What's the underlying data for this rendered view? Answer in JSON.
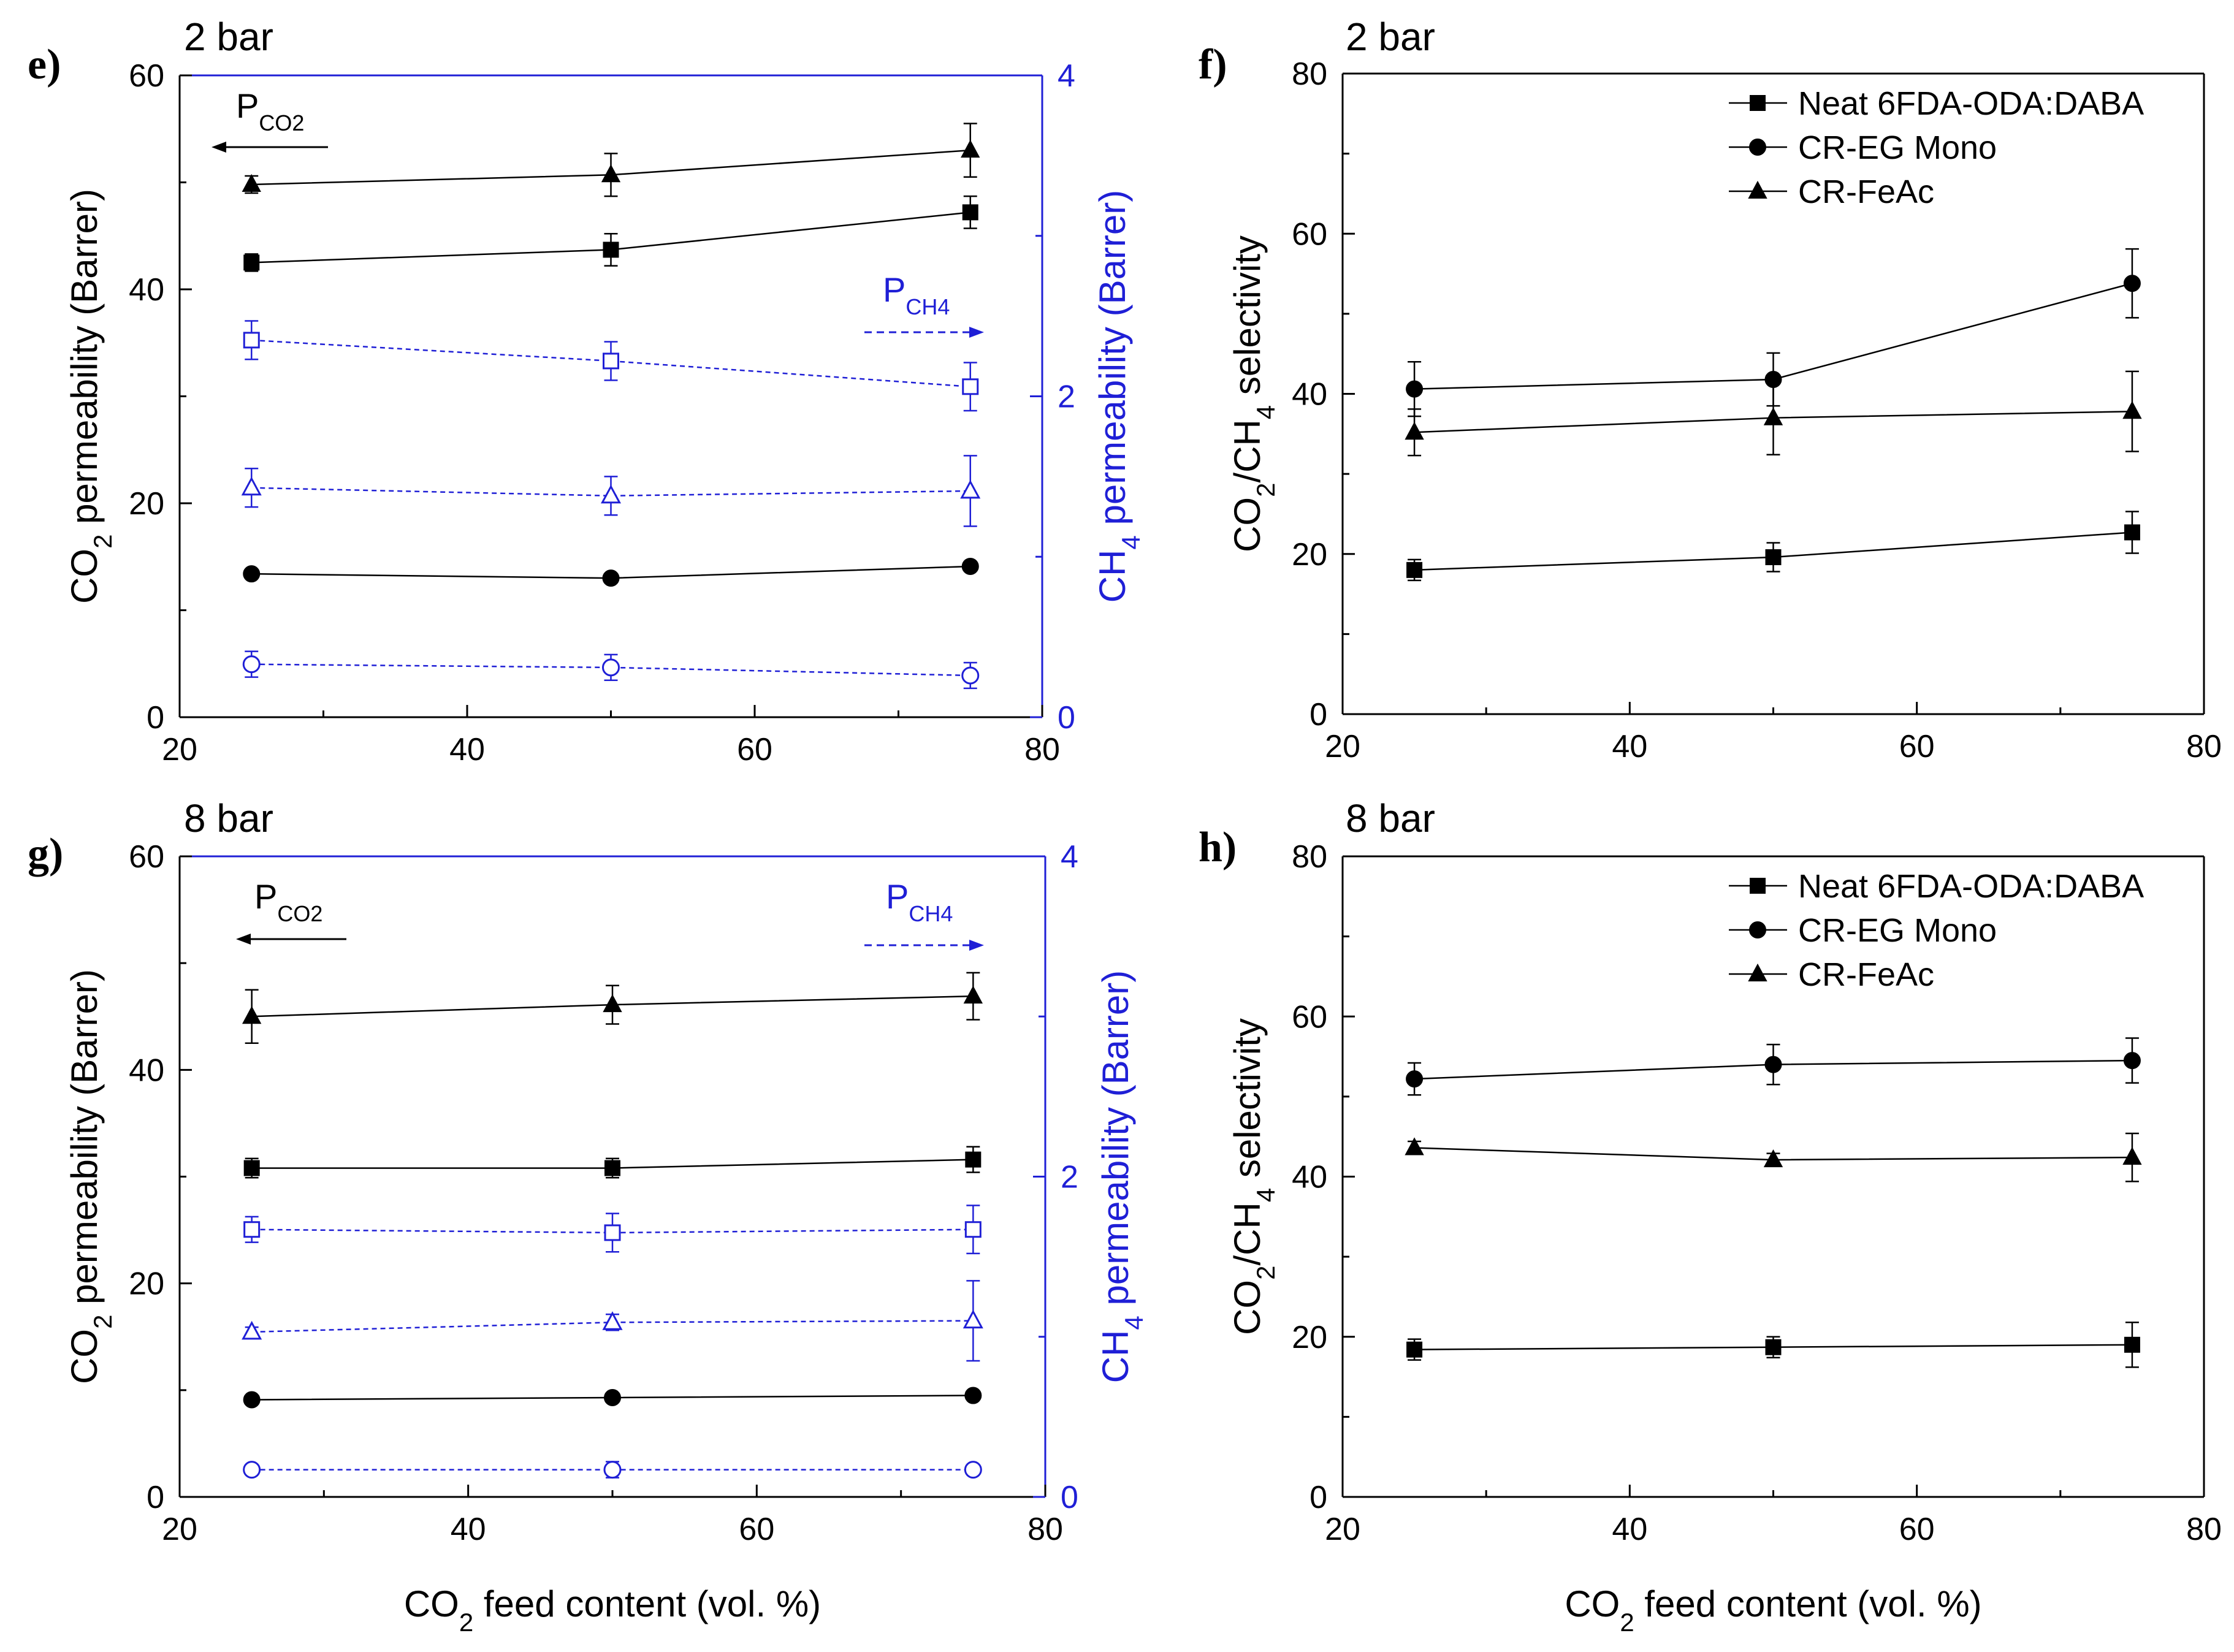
{
  "colors": {
    "primary": "#000000",
    "secondary": "#1f1fd6"
  },
  "panels": [
    {
      "id": "e",
      "letter": "e)",
      "pressure": "2 bar",
      "kind": "permeability",
      "xlabel_main": "",
      "xlabel_sub": "",
      "xlabel_rest": "",
      "ylabel_main": "CO",
      "ylabel_sub": "2",
      "ylabel_rest": " permeability (Barrer)",
      "y2label_main": "CH",
      "y2label_sub": "4",
      "y2label_rest": " permeability (Barrer)",
      "ann_left": {
        "main": "P",
        "sub": "CO2"
      },
      "ann_right": {
        "main": "P",
        "sub": "CH4"
      }
    },
    {
      "id": "f",
      "letter": "f)",
      "pressure": "2 bar",
      "kind": "selectivity",
      "xlabel_main": "",
      "xlabel_sub": "",
      "xlabel_rest": "",
      "ylabel_main": "CO",
      "ylabel_sub": "2",
      "ylabel_mid": "/CH",
      "ylabel_sub2": "4",
      "ylabel_rest": " selectivity"
    },
    {
      "id": "g",
      "letter": "g)",
      "pressure": "8 bar",
      "kind": "permeability",
      "xlabel_main": "CO",
      "xlabel_sub": "2",
      "xlabel_rest": " feed content (vol. %)",
      "ylabel_main": "CO",
      "ylabel_sub": "2",
      "ylabel_rest": " permeability (Barrer)",
      "y2label_main": "CH",
      "y2label_sub": "4",
      "y2label_rest": " permeability (Barrer)",
      "ann_left": {
        "main": "P",
        "sub": "CO2"
      },
      "ann_right": {
        "main": "P",
        "sub": "CH4"
      }
    },
    {
      "id": "h",
      "letter": "h)",
      "pressure": "8 bar",
      "kind": "selectivity",
      "xlabel_main": "CO",
      "xlabel_sub": "2",
      "xlabel_rest": " feed content (vol. %)",
      "ylabel_main": "CO",
      "ylabel_sub": "2",
      "ylabel_mid": "/CH",
      "ylabel_sub2": "4",
      "ylabel_rest": " selectivity"
    }
  ],
  "legend_entries": [
    "Neat 6FDA-ODA:DABA",
    "CR-EG Mono",
    "CR-FeAc"
  ],
  "chart_data": [
    {
      "panel": "e",
      "type": "line",
      "title": "2 bar",
      "x": [
        25,
        50,
        75
      ],
      "xlim": [
        20,
        80
      ],
      "xticks": [
        20,
        40,
        60,
        80
      ],
      "ylim": [
        0,
        60
      ],
      "yticks": [
        0,
        20,
        40,
        60
      ],
      "y2lim": [
        0,
        4
      ],
      "y2ticks": [
        0,
        2,
        4
      ],
      "series": [
        {
          "name": "Neat 6FDA-ODA:DABA CO2",
          "axis": "left",
          "marker": "square",
          "filled": true,
          "dashed": false,
          "color": "#000000",
          "values": [
            42.5,
            43.7,
            47.2
          ],
          "errors": [
            0.8,
            1.5,
            1.5
          ]
        },
        {
          "name": "CR-EG Mono CO2",
          "axis": "left",
          "marker": "circle",
          "filled": true,
          "dashed": false,
          "color": "#000000",
          "values": [
            13.4,
            13.0,
            14.1
          ],
          "errors": [
            0.3,
            0.3,
            0.3
          ]
        },
        {
          "name": "CR-FeAc CO2",
          "axis": "left",
          "marker": "triangle",
          "filled": true,
          "dashed": false,
          "color": "#000000",
          "values": [
            49.8,
            50.7,
            53.0
          ],
          "errors": [
            0.8,
            2.0,
            2.5
          ]
        },
        {
          "name": "Neat 6FDA-ODA:DABA CH4",
          "axis": "right",
          "marker": "square",
          "filled": false,
          "dashed": true,
          "color": "#1f1fd6",
          "values": [
            2.35,
            2.22,
            2.06
          ],
          "errors": [
            0.12,
            0.12,
            0.15
          ]
        },
        {
          "name": "CR-EG Mono CH4",
          "axis": "right",
          "marker": "circle",
          "filled": false,
          "dashed": true,
          "color": "#1f1fd6",
          "values": [
            0.33,
            0.31,
            0.26
          ],
          "errors": [
            0.08,
            0.08,
            0.08
          ]
        },
        {
          "name": "CR-FeAc CH4",
          "axis": "right",
          "marker": "triangle",
          "filled": false,
          "dashed": true,
          "color": "#1f1fd6",
          "values": [
            1.43,
            1.38,
            1.41
          ],
          "errors": [
            0.12,
            0.12,
            0.22
          ]
        }
      ]
    },
    {
      "panel": "f",
      "type": "line",
      "title": "2 bar",
      "x": [
        25,
        50,
        75
      ],
      "xlim": [
        20,
        80
      ],
      "xticks": [
        20,
        40,
        60,
        80
      ],
      "ylim": [
        0,
        80
      ],
      "yticks": [
        0,
        20,
        40,
        60,
        80
      ],
      "series": [
        {
          "name": "Neat 6FDA-ODA:DABA",
          "marker": "square",
          "filled": true,
          "color": "#000000",
          "values": [
            18.0,
            19.6,
            22.7
          ],
          "errors": [
            1.3,
            1.8,
            2.6
          ]
        },
        {
          "name": "CR-EG Mono",
          "marker": "circle",
          "filled": true,
          "color": "#000000",
          "values": [
            40.6,
            41.8,
            53.8
          ],
          "errors": [
            3.4,
            3.3,
            4.3
          ]
        },
        {
          "name": "CR-FeAc",
          "marker": "triangle",
          "filled": true,
          "color": "#000000",
          "values": [
            35.2,
            37.0,
            37.8
          ],
          "errors": [
            2.9,
            4.6,
            5.0
          ]
        }
      ]
    },
    {
      "panel": "g",
      "type": "line",
      "title": "8 bar",
      "x": [
        25,
        50,
        75
      ],
      "xlim": [
        20,
        80
      ],
      "xticks": [
        20,
        40,
        60,
        80
      ],
      "xlabel": "CO2 feed content (vol. %)",
      "ylim": [
        0,
        60
      ],
      "yticks": [
        0,
        20,
        40,
        60
      ],
      "y2lim": [
        0,
        4
      ],
      "y2ticks": [
        0,
        2,
        4
      ],
      "series": [
        {
          "name": "Neat 6FDA-ODA:DABA CO2",
          "axis": "left",
          "marker": "square",
          "filled": true,
          "dashed": false,
          "color": "#000000",
          "values": [
            30.8,
            30.8,
            31.6
          ],
          "errors": [
            0.9,
            0.9,
            1.2
          ]
        },
        {
          "name": "CR-EG Mono CO2",
          "axis": "left",
          "marker": "circle",
          "filled": true,
          "dashed": false,
          "color": "#000000",
          "values": [
            9.1,
            9.3,
            9.5
          ],
          "errors": [
            0.3,
            0.3,
            0.3
          ]
        },
        {
          "name": "CR-FeAc CO2",
          "axis": "left",
          "marker": "triangle",
          "filled": true,
          "dashed": false,
          "color": "#000000",
          "values": [
            45.0,
            46.1,
            46.9
          ],
          "errors": [
            2.5,
            1.8,
            2.2
          ]
        },
        {
          "name": "Neat 6FDA-ODA:DABA CH4",
          "axis": "right",
          "marker": "square",
          "filled": false,
          "dashed": true,
          "color": "#1f1fd6",
          "values": [
            1.67,
            1.65,
            1.67
          ],
          "errors": [
            0.08,
            0.12,
            0.15
          ]
        },
        {
          "name": "CR-EG Mono CH4",
          "axis": "right",
          "marker": "circle",
          "filled": false,
          "dashed": true,
          "color": "#1f1fd6",
          "values": [
            0.17,
            0.17,
            0.17
          ],
          "errors": [
            0.03,
            0.05,
            0.03
          ]
        },
        {
          "name": "CR-FeAc CH4",
          "axis": "right",
          "marker": "triangle",
          "filled": false,
          "dashed": true,
          "color": "#1f1fd6",
          "values": [
            1.03,
            1.09,
            1.1
          ],
          "errors": [
            0.03,
            0.05,
            0.25
          ]
        }
      ]
    },
    {
      "panel": "h",
      "type": "line",
      "title": "8 bar",
      "x": [
        25,
        50,
        75
      ],
      "xlim": [
        20,
        80
      ],
      "xticks": [
        20,
        40,
        60,
        80
      ],
      "xlabel": "CO2 feed content (vol. %)",
      "ylim": [
        0,
        80
      ],
      "yticks": [
        0,
        20,
        40,
        60,
        80
      ],
      "series": [
        {
          "name": "Neat 6FDA-ODA:DABA",
          "marker": "square",
          "filled": true,
          "color": "#000000",
          "values": [
            18.4,
            18.7,
            19.0
          ],
          "errors": [
            1.3,
            1.3,
            2.8
          ]
        },
        {
          "name": "CR-EG Mono",
          "marker": "circle",
          "filled": true,
          "color": "#000000",
          "values": [
            52.2,
            54.0,
            54.5
          ],
          "errors": [
            2.0,
            2.5,
            2.8
          ]
        },
        {
          "name": "CR-FeAc",
          "marker": "triangle",
          "filled": true,
          "color": "#000000",
          "values": [
            43.6,
            42.1,
            42.4
          ],
          "errors": [
            0.8,
            0.8,
            3.0
          ]
        }
      ]
    }
  ]
}
